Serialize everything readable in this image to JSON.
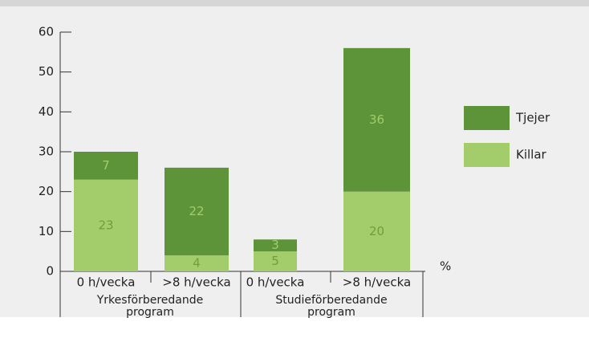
{
  "chart_data": {
    "type": "bar",
    "stacked": true,
    "categories": [
      "0 h/vecka",
      ">8 h/vecka",
      "0 h/vecka",
      ">8 h/vecka"
    ],
    "group_labels": [
      [
        "Yrkesförberedande",
        "program"
      ],
      [
        "Studieförberedande",
        "program"
      ]
    ],
    "unit_label": "%",
    "series": [
      {
        "name": "Killar",
        "color": "#a3cc6a",
        "label_color": "#6f9e3f",
        "values": [
          23,
          4,
          5,
          20
        ]
      },
      {
        "name": "Tjejer",
        "color": "#5e9439",
        "label_color": "#a3cc6a",
        "values": [
          7,
          22,
          3,
          36
        ]
      }
    ],
    "ylim": [
      0,
      60
    ],
    "yticks": [
      0,
      10,
      20,
      30,
      40,
      50,
      60
    ]
  }
}
